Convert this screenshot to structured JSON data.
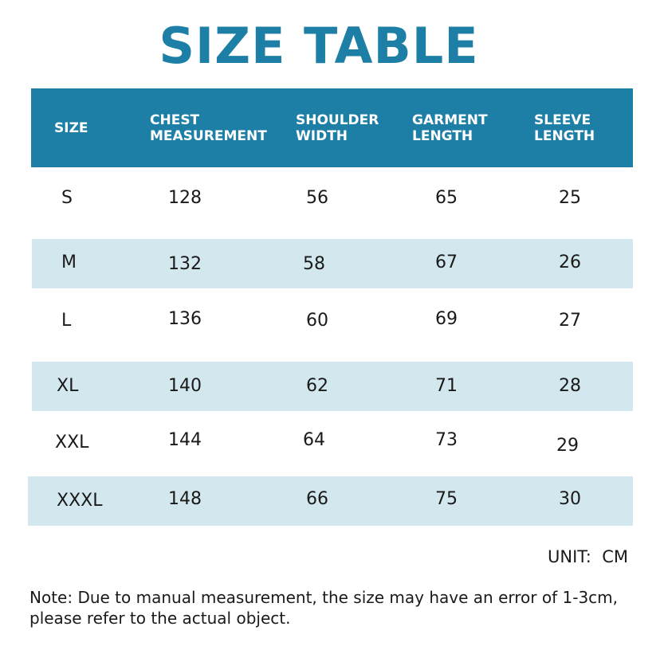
{
  "title": "SIZE TABLE",
  "columns": [
    "SIZE",
    "CHEST\nMEASUREMENT",
    "SHOULDER\nWIDTH",
    "GARMENT\nLENGTH",
    "SLEEVE\nLENGTH"
  ],
  "rows": [
    [
      "S",
      "128",
      "56",
      "65",
      "25"
    ],
    [
      "M",
      "132",
      "58",
      "67",
      "26"
    ],
    [
      "L",
      "136",
      "60",
      "69",
      "27"
    ],
    [
      "XL",
      "140",
      "62",
      "71",
      "28"
    ],
    [
      "XXL",
      "144",
      "64",
      "73",
      "29"
    ],
    [
      "XXXL",
      "148",
      "66",
      "75",
      "30"
    ]
  ],
  "unit": "UNIT:  CM",
  "note": "Note: Due to manual measurement, the size may have an error of 1-3cm, please refer to the actual object.",
  "colors": {
    "accent": "#1e7fa6",
    "row_shade": "#d3e7ee"
  }
}
